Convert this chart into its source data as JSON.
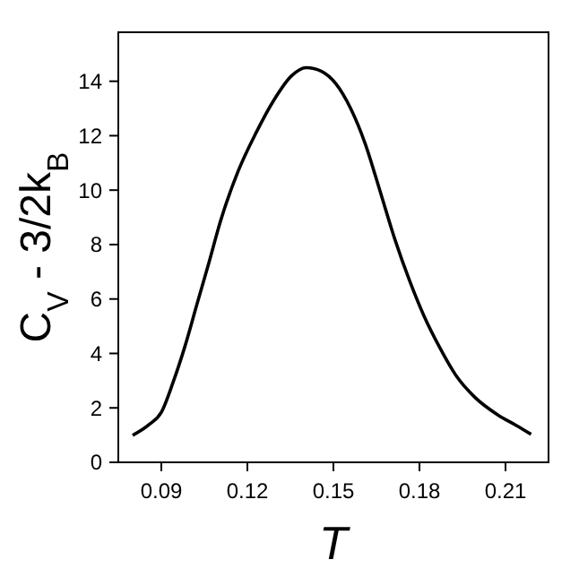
{
  "chart_data": {
    "type": "line",
    "xlabel": "T",
    "ylabel": "C$_{V}$ - 3/2k$_{B}$",
    "xlim": [
      0.075,
      0.225
    ],
    "ylim": [
      0,
      15.8
    ],
    "xticks": [
      0.09,
      0.12,
      0.15,
      0.18,
      0.21
    ],
    "yticks": [
      0,
      2,
      4,
      6,
      8,
      10,
      12,
      14
    ],
    "grid": false,
    "line_style": "solid",
    "series": [
      {
        "color": "#000000",
        "x": [
          0.08,
          0.0859,
          0.09,
          0.0941,
          0.0982,
          0.1024,
          0.1065,
          0.1106,
          0.1168,
          0.123,
          0.1292,
          0.1354,
          0.1405,
          0.1457,
          0.1509,
          0.156,
          0.1611,
          0.1663,
          0.1714,
          0.1766,
          0.1817,
          0.1869,
          0.193,
          0.1993,
          0.2075,
          0.2137,
          0.2189
        ],
        "values": [
          0.99,
          1.4,
          1.84,
          2.94,
          4.25,
          5.8,
          7.3,
          8.85,
          10.7,
          12.1,
          13.3,
          14.2,
          14.5,
          14.37,
          13.9,
          13.0,
          11.7,
          9.95,
          8.2,
          6.66,
          5.35,
          4.25,
          3.15,
          2.39,
          1.73,
          1.36,
          1.03
        ]
      }
    ]
  }
}
